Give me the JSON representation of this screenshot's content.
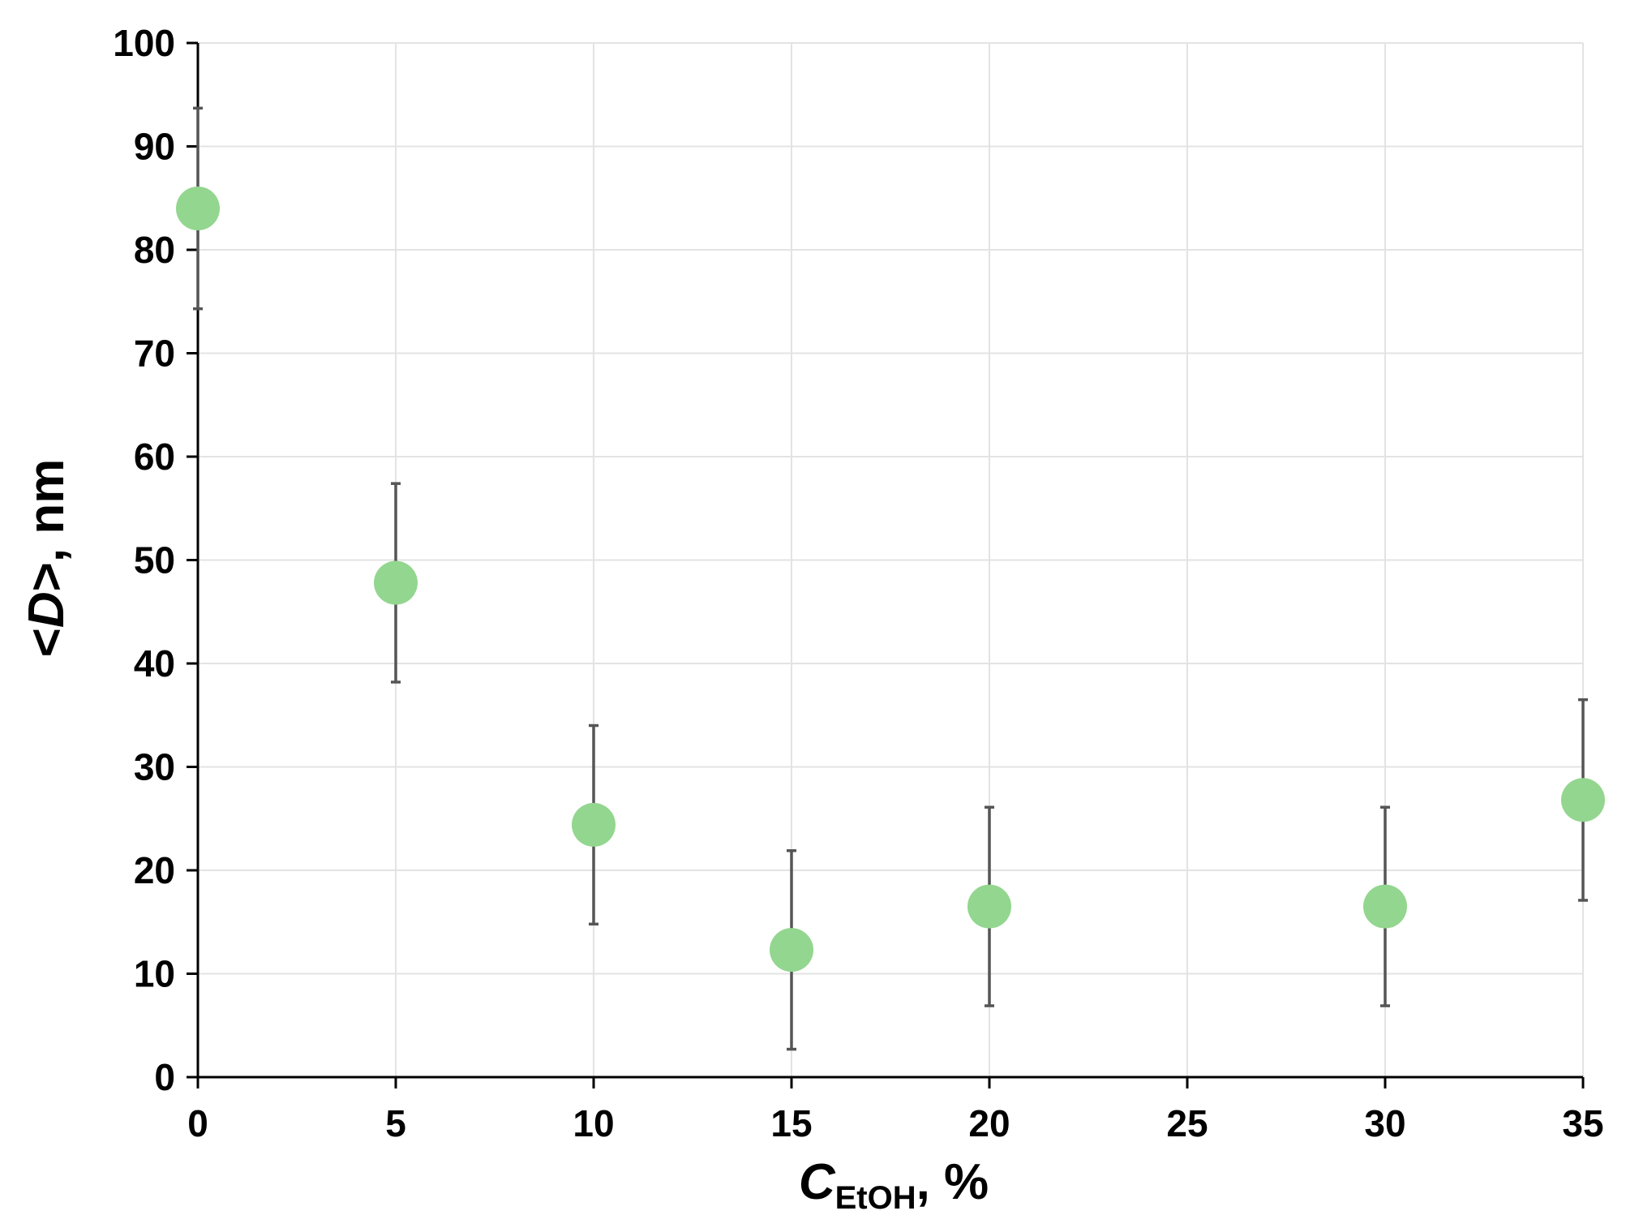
{
  "chart_data": {
    "type": "scatter",
    "xlabel": {
      "main": "C",
      "sub": "EtOH",
      "suffix": ", %"
    },
    "ylabel": {
      "open": "<",
      "var": "D",
      "close": ">, nm"
    },
    "xlim": [
      0,
      35
    ],
    "ylim": [
      0,
      100
    ],
    "xticks": [
      0,
      5,
      10,
      15,
      20,
      25,
      30,
      35
    ],
    "yticks": [
      0,
      10,
      20,
      30,
      40,
      50,
      60,
      70,
      80,
      90,
      100
    ],
    "grid": true,
    "marker_color": "#93d68f",
    "errorbar_color": "#555555",
    "points": [
      {
        "x": 0,
        "y": 84,
        "err": 9.7
      },
      {
        "x": 5,
        "y": 47.8,
        "err": 9.6
      },
      {
        "x": 10,
        "y": 24.4,
        "err": 9.6
      },
      {
        "x": 15,
        "y": 12.3,
        "err": 9.6
      },
      {
        "x": 20,
        "y": 16.5,
        "err": 9.6
      },
      {
        "x": 30,
        "y": 16.5,
        "err": 9.6
      },
      {
        "x": 35,
        "y": 26.8,
        "err": 9.7
      }
    ]
  }
}
